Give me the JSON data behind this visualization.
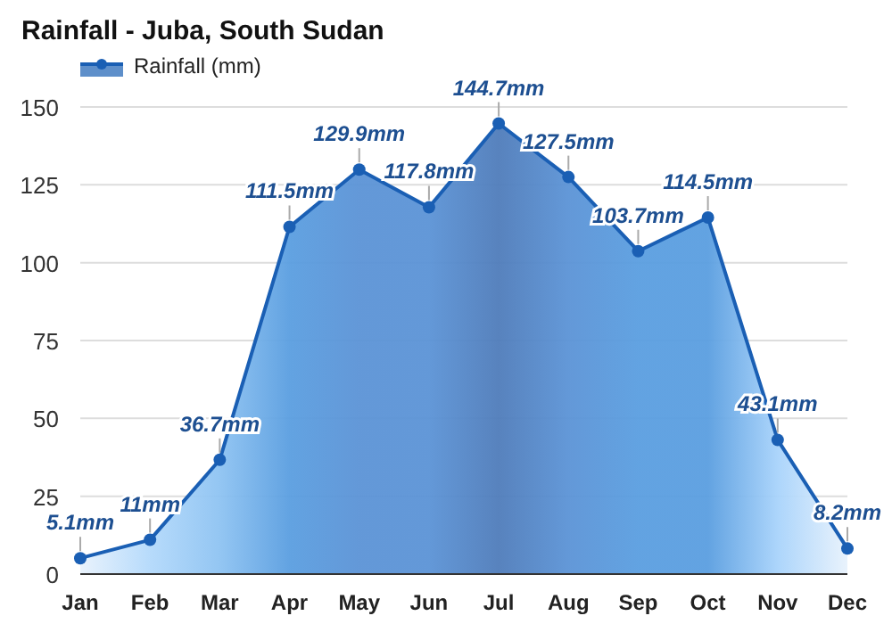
{
  "chart_data": {
    "type": "area",
    "title": "Rainfall - Juba, South Sudan",
    "categories": [
      "Jan",
      "Feb",
      "Mar",
      "Apr",
      "May",
      "Jun",
      "Jul",
      "Aug",
      "Sep",
      "Oct",
      "Nov",
      "Dec"
    ],
    "series": [
      {
        "name": "Rainfall (mm)",
        "color": "#1a5fb4",
        "values": [
          5.1,
          11,
          36.7,
          111.5,
          129.9,
          117.8,
          144.7,
          127.5,
          103.7,
          114.5,
          43.1,
          8.2
        ],
        "value_labels": [
          "5.1mm",
          "11mm",
          "36.7mm",
          "111.5mm",
          "129.9mm",
          "117.8mm",
          "144.7mm",
          "127.5mm",
          "103.7mm",
          "114.5mm",
          "43.1mm",
          "8.2mm"
        ],
        "colors": [
          "#e8f2fc",
          "#b3d9fb",
          "#8ec3f2",
          "#5a9ee0",
          "#5b93d6",
          "#5b93d6",
          "#4f7cba",
          "#5b93d6",
          "#5a9ee0",
          "#5a9ee0",
          "#a8d3fb",
          "#e8f2fc"
        ]
      }
    ],
    "ylim": [
      0,
      150
    ],
    "yticks": [
      0,
      25,
      50,
      75,
      100,
      125,
      150
    ],
    "grid": "y",
    "legend": "top left",
    "marker": "circle"
  }
}
